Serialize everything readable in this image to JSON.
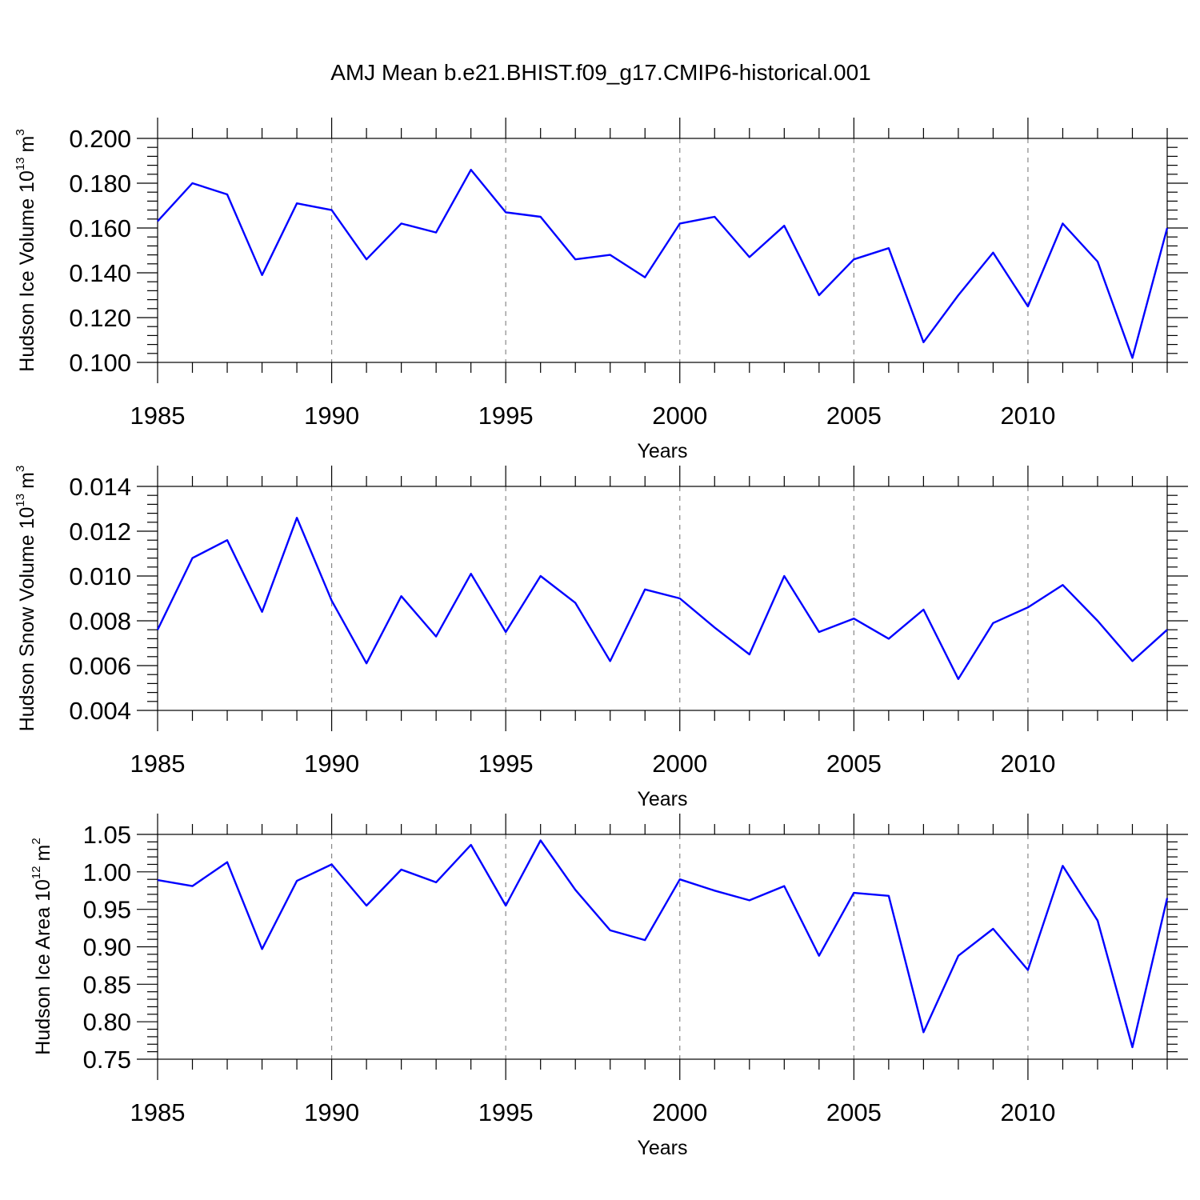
{
  "title": "AMJ Mean b.e21.BHIST.f09_g17.CMIP6-historical.001",
  "chart_data": [
    {
      "type": "line",
      "ylabel": "Hudson Ice Volume 10",
      "ylabel_exp": "13",
      "ylabel_unit": "m",
      "ylabel_unit_exp": "3",
      "xlabel": "Years",
      "xlim": [
        1985,
        2014
      ],
      "ylim": [
        0.1,
        0.2
      ],
      "x_ticks": [
        "1985",
        "1990",
        "1995",
        "2000",
        "2005",
        "2010"
      ],
      "y_ticks": [
        "0.100",
        "0.120",
        "0.140",
        "0.160",
        "0.180",
        "0.200"
      ],
      "line_color": "#0000ff",
      "grid": "vertical dashed at major x ticks",
      "x": [
        1985,
        1986,
        1987,
        1988,
        1989,
        1990,
        1991,
        1992,
        1993,
        1994,
        1995,
        1996,
        1997,
        1998,
        1999,
        2000,
        2001,
        2002,
        2003,
        2004,
        2005,
        2006,
        2007,
        2008,
        2009,
        2010,
        2011,
        2012,
        2013,
        2014
      ],
      "values": [
        0.163,
        0.18,
        0.175,
        0.139,
        0.171,
        0.168,
        0.146,
        0.162,
        0.158,
        0.186,
        0.167,
        0.165,
        0.146,
        0.148,
        0.138,
        0.162,
        0.165,
        0.147,
        0.161,
        0.13,
        0.146,
        0.151,
        0.109,
        0.13,
        0.149,
        0.125,
        0.162,
        0.145,
        0.102,
        0.16
      ]
    },
    {
      "type": "line",
      "ylabel": "Hudson Snow Volume 10",
      "ylabel_exp": "13",
      "ylabel_unit": "m",
      "ylabel_unit_exp": "3",
      "xlabel": "Years",
      "xlim": [
        1985,
        2014
      ],
      "ylim": [
        0.004,
        0.014
      ],
      "x_ticks": [
        "1985",
        "1990",
        "1995",
        "2000",
        "2005",
        "2010"
      ],
      "y_ticks": [
        "0.004",
        "0.006",
        "0.008",
        "0.010",
        "0.012",
        "0.014"
      ],
      "line_color": "#0000ff",
      "grid": "vertical dashed at major x ticks",
      "x": [
        1985,
        1986,
        1987,
        1988,
        1989,
        1990,
        1991,
        1992,
        1993,
        1994,
        1995,
        1996,
        1997,
        1998,
        1999,
        2000,
        2001,
        2002,
        2003,
        2004,
        2005,
        2006,
        2007,
        2008,
        2009,
        2010,
        2011,
        2012,
        2013,
        2014
      ],
      "values": [
        0.0076,
        0.0108,
        0.0116,
        0.0084,
        0.0126,
        0.0089,
        0.0061,
        0.0091,
        0.0073,
        0.0101,
        0.0075,
        0.01,
        0.0088,
        0.0062,
        0.0094,
        0.009,
        0.0077,
        0.0065,
        0.01,
        0.0075,
        0.0081,
        0.0072,
        0.0085,
        0.0054,
        0.0079,
        0.0086,
        0.0096,
        0.008,
        0.0062,
        0.0076
      ]
    },
    {
      "type": "line",
      "ylabel": "Hudson Ice Area 10",
      "ylabel_exp": "12",
      "ylabel_unit": "m",
      "ylabel_unit_exp": "2",
      "xlabel": "Years",
      "xlim": [
        1985,
        2014
      ],
      "ylim": [
        0.75,
        1.05
      ],
      "x_ticks": [
        "1985",
        "1990",
        "1995",
        "2000",
        "2005",
        "2010"
      ],
      "y_ticks": [
        "0.75",
        "0.80",
        "0.85",
        "0.90",
        "0.95",
        "1.00",
        "1.05"
      ],
      "line_color": "#0000ff",
      "grid": "vertical dashed at major x ticks",
      "x": [
        1985,
        1986,
        1987,
        1988,
        1989,
        1990,
        1991,
        1992,
        1993,
        1994,
        1995,
        1996,
        1997,
        1998,
        1999,
        2000,
        2001,
        2002,
        2003,
        2004,
        2005,
        2006,
        2007,
        2008,
        2009,
        2010,
        2011,
        2012,
        2013,
        2014
      ],
      "values": [
        0.989,
        0.981,
        1.013,
        0.897,
        0.988,
        1.01,
        0.955,
        1.003,
        0.986,
        1.036,
        0.955,
        1.042,
        0.976,
        0.922,
        0.909,
        0.99,
        0.975,
        0.962,
        0.981,
        0.888,
        0.972,
        0.968,
        0.786,
        0.888,
        0.924,
        0.869,
        1.008,
        0.935,
        0.766,
        0.965
      ]
    }
  ]
}
